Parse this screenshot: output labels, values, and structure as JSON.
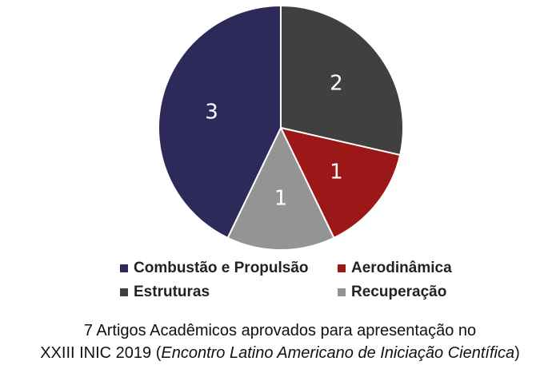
{
  "chart_data": {
    "type": "pie",
    "categories": [
      "Estruturas",
      "Aerodinâmica",
      "Recuperação",
      "Combustão e Propulsão"
    ],
    "values": [
      2,
      1,
      1,
      3
    ],
    "data_labels": [
      "2",
      "1",
      "1",
      "3"
    ],
    "colors": [
      "#404040",
      "#9c1818",
      "#949494",
      "#2d2a5a"
    ],
    "start_angle_deg": 0,
    "direction": "clockwise",
    "legend_placement": "bottom"
  },
  "legend": {
    "items": [
      {
        "label": "Combustão e Propulsão",
        "color": "#2d2a5a"
      },
      {
        "label": "Aerodinâmica",
        "color": "#9c1818"
      },
      {
        "label": "Estruturas",
        "color": "#404040"
      },
      {
        "label": "Recuperação",
        "color": "#949494"
      }
    ]
  },
  "caption": {
    "line1": "7  Artigos Acadêmicos aprovados para apresentação no",
    "line2_prefix": "XXIII INIC  2019 (",
    "line2_italic": "Encontro Latino Americano de Iniciação Científica",
    "line2_suffix": ")"
  }
}
